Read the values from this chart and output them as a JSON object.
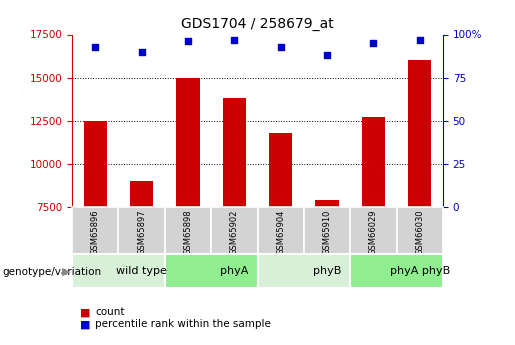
{
  "title": "GDS1704 / 258679_at",
  "samples": [
    "GSM65896",
    "GSM65897",
    "GSM65898",
    "GSM65902",
    "GSM65904",
    "GSM65910",
    "GSM66029",
    "GSM66030"
  ],
  "counts": [
    12500,
    9000,
    15000,
    13800,
    11800,
    7900,
    12700,
    16000
  ],
  "percentile_ranks": [
    93,
    90,
    96,
    97,
    93,
    88,
    95,
    97
  ],
  "groups": [
    {
      "label": "wild type",
      "color": "#d8f0d8",
      "start": 0,
      "end": 2
    },
    {
      "label": "phyA",
      "color": "#90ee90",
      "start": 2,
      "end": 4
    },
    {
      "label": "phyB",
      "color": "#d8f0d8",
      "start": 4,
      "end": 6
    },
    {
      "label": "phyA phyB",
      "color": "#90ee90",
      "start": 6,
      "end": 8
    }
  ],
  "ylim_left": [
    7500,
    17500
  ],
  "ylim_right": [
    0,
    100
  ],
  "yticks_left": [
    7500,
    10000,
    12500,
    15000,
    17500
  ],
  "yticks_right": [
    0,
    25,
    50,
    75,
    100
  ],
  "ytick_right_labels": [
    "0",
    "25",
    "50",
    "75",
    "100%"
  ],
  "bar_color": "#cc0000",
  "dot_color": "#0000cc",
  "bar_width": 0.5,
  "tick_color_left": "#cc0000",
  "tick_color_right": "#0000cc",
  "background_color": "#ffffff",
  "legend_bar_label": "count",
  "legend_dot_label": "percentile rank within the sample",
  "group_label": "genotype/variation"
}
